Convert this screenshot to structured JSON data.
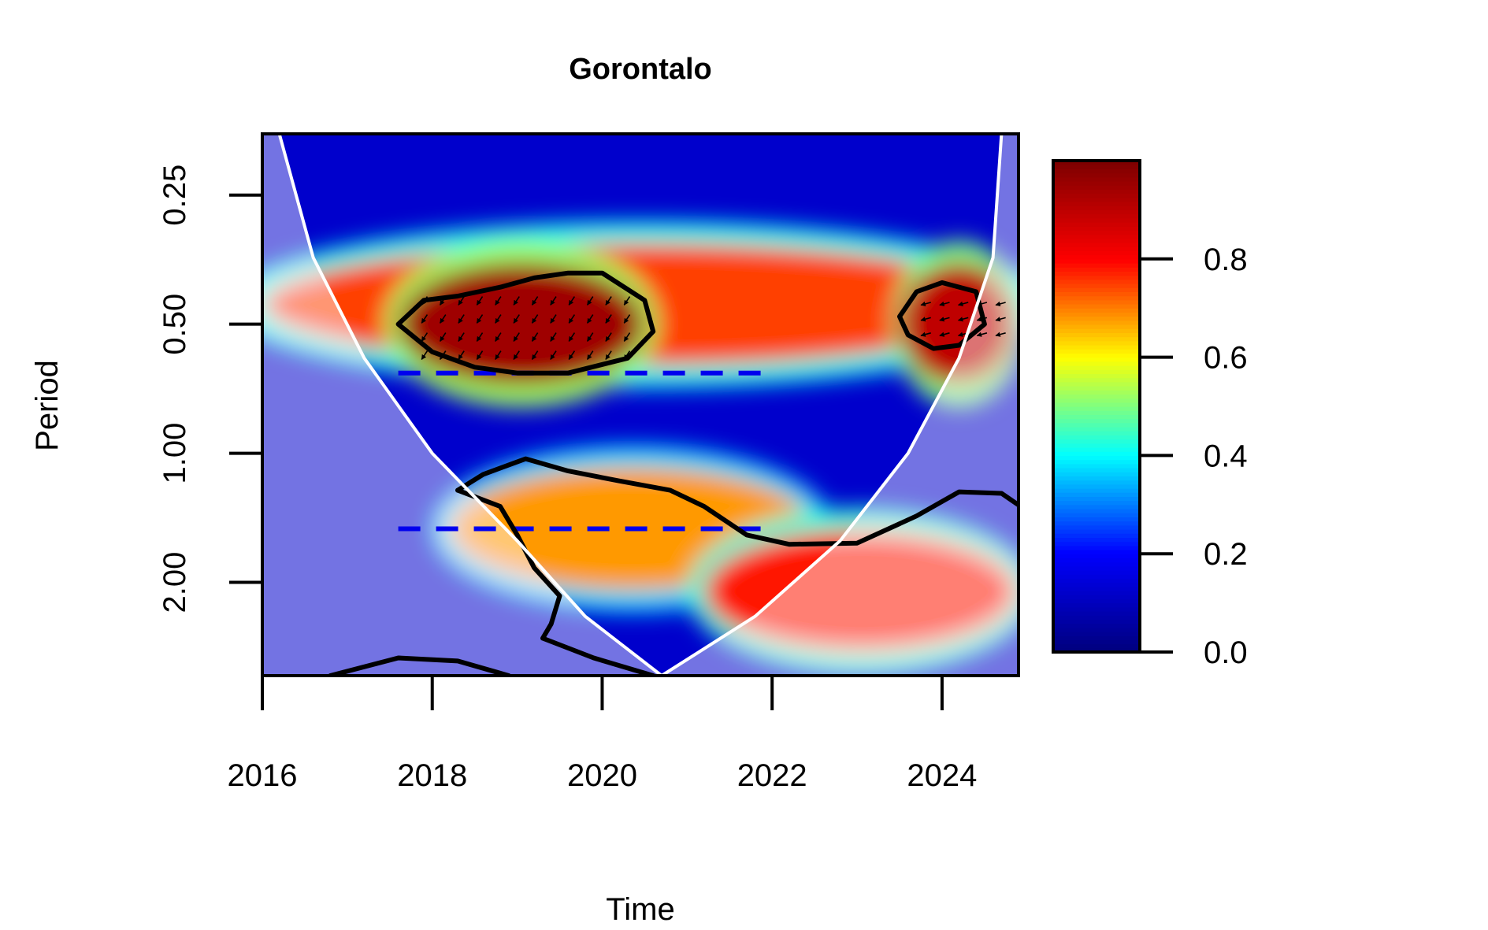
{
  "chart_data": {
    "type": "heatmap",
    "title": "Gorontalo",
    "xlabel": "Time",
    "ylabel": "Period",
    "x_ticks": [
      2016,
      2018,
      2020,
      2022,
      2024
    ],
    "x_tick_labels": [
      "2016",
      "2018",
      "2020",
      "2022",
      "2024"
    ],
    "xlim": [
      2016,
      2024.9
    ],
    "y_scale": "log2",
    "y_ticks": [
      0.25,
      0.5,
      1.0,
      2.0
    ],
    "y_tick_labels": [
      "0.25",
      "0.50",
      "1.00",
      "2.00"
    ],
    "ylim": [
      0.18,
      3.3
    ],
    "y_reversed": true,
    "colorbar": {
      "range": [
        0.0,
        1.0
      ],
      "ticks": [
        0.0,
        0.2,
        0.4,
        0.6,
        0.8
      ],
      "tick_labels": [
        "0.0",
        "0.2",
        "0.4",
        "0.6",
        "0.8"
      ],
      "palette": [
        "#00007f",
        "#0000ff",
        "#00ffff",
        "#ffff00",
        "#ff0000",
        "#7f0000"
      ]
    },
    "power_ridges": [
      {
        "time_range": [
          2016,
          2024.9
        ],
        "period": 0.45,
        "power": 0.75
      },
      {
        "time_range": [
          2017.6,
          2020.5
        ],
        "period": 0.5,
        "power": 0.95
      },
      {
        "time_range": [
          2023.5,
          2024.9
        ],
        "period": 0.5,
        "power": 0.9
      },
      {
        "time_range": [
          2018.2,
          2022.5
        ],
        "period": 1.5,
        "power": 0.68
      },
      {
        "time_range": [
          2021.2,
          2024.9
        ],
        "period": 2.1,
        "power": 0.78
      }
    ],
    "significance_regions": [
      {
        "time": [
          2017.6,
          2017.9,
          2018.3,
          2018.8,
          2019.2,
          2019.6,
          2020.0,
          2020.5,
          2020.6,
          2020.3,
          2019.6,
          2019.0,
          2018.5,
          2018.0,
          2017.6
        ],
        "period": [
          0.5,
          0.44,
          0.43,
          0.41,
          0.39,
          0.38,
          0.38,
          0.44,
          0.52,
          0.6,
          0.65,
          0.65,
          0.63,
          0.58,
          0.5
        ]
      },
      {
        "time": [
          2023.5,
          2023.7,
          2024.0,
          2024.4,
          2024.5,
          2024.2,
          2023.9,
          2023.6,
          2023.5
        ],
        "period": [
          0.48,
          0.42,
          0.4,
          0.42,
          0.5,
          0.56,
          0.57,
          0.53,
          0.48
        ]
      },
      {
        "time": [
          2018.3,
          2018.6,
          2019.1,
          2019.6,
          2020.2,
          2020.8,
          2021.2,
          2021.7,
          2022.2,
          2023.0,
          2023.7,
          2024.2,
          2024.7,
          2024.9
        ],
        "period": [
          1.22,
          1.12,
          1.03,
          1.1,
          1.16,
          1.22,
          1.33,
          1.55,
          1.63,
          1.62,
          1.4,
          1.23,
          1.24,
          1.32
        ]
      },
      {
        "time": [
          2018.3,
          2018.8,
          2019.0,
          2019.2,
          2019.5,
          2019.4,
          2019.3,
          2019.9,
          2020.6
        ],
        "period": [
          1.22,
          1.33,
          1.55,
          1.85,
          2.15,
          2.5,
          2.7,
          3.0,
          3.3
        ]
      },
      {
        "time": [
          2016.8,
          2017.6,
          2018.3,
          2018.9
        ],
        "period": [
          3.3,
          3.0,
          3.05,
          3.3
        ]
      }
    ],
    "power_significance_lines": [
      {
        "period": 0.65,
        "time_range": [
          2017.6,
          2022.0
        ]
      },
      {
        "period": 1.5,
        "time_range": [
          2017.6,
          2022.0
        ]
      }
    ],
    "cone_of_influence": {
      "time": [
        2016.2,
        2016.6,
        2017.2,
        2018.0,
        2019.0,
        2019.8,
        2020.7,
        2021.8,
        2022.8,
        2023.6,
        2024.2,
        2024.6,
        2024.7
      ],
      "period": [
        0.18,
        0.35,
        0.6,
        1.0,
        1.6,
        2.4,
        3.3,
        2.4,
        1.6,
        1.0,
        0.6,
        0.35,
        0.18
      ]
    }
  }
}
